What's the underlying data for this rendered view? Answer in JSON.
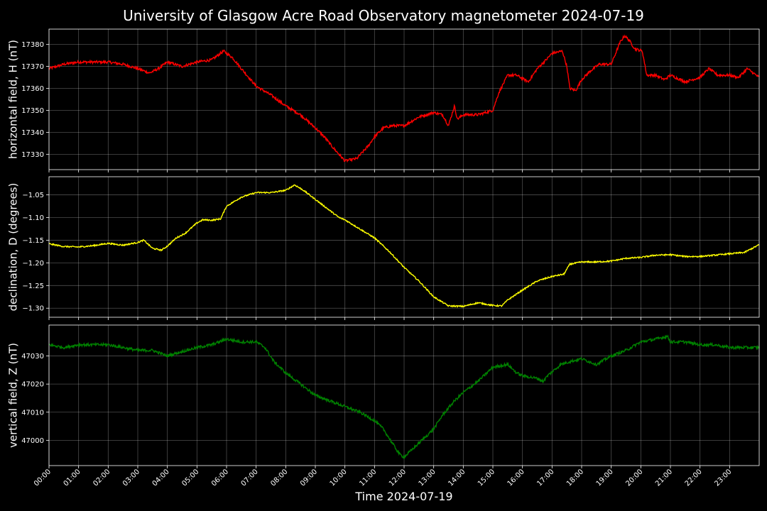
{
  "chart_data": {
    "type": "line",
    "title": "University of Glasgow Acre Road Observatory magnetometer 2024-07-19",
    "xlabel": "Time 2024-07-19",
    "x_ticks": [
      "00:00",
      "01:00",
      "02:00",
      "03:00",
      "04:00",
      "05:00",
      "06:00",
      "07:00",
      "08:00",
      "09:00",
      "10:00",
      "11:00",
      "12:00",
      "13:00",
      "14:00",
      "15:00",
      "16:00",
      "17:00",
      "18:00",
      "19:00",
      "20:00",
      "21:00",
      "22:00",
      "23:00"
    ],
    "xlim_hours": [
      0,
      24
    ],
    "grid": true,
    "panels": [
      {
        "ylabel": "horizontal field, H (nT)",
        "color": "#ff0000",
        "ylim": [
          17323,
          17387
        ],
        "y_ticks": [
          17330,
          17340,
          17350,
          17360,
          17370,
          17380
        ],
        "y_tick_labels": [
          "17330",
          "17340",
          "17350",
          "17360",
          "17370",
          "17380"
        ],
        "noise": 0.6,
        "points": [
          [
            0,
            17369
          ],
          [
            0.5,
            17371
          ],
          [
            1.0,
            17372
          ],
          [
            1.5,
            17372
          ],
          [
            2.0,
            17372
          ],
          [
            2.5,
            17371
          ],
          [
            3.0,
            17369
          ],
          [
            3.4,
            17367
          ],
          [
            3.7,
            17369
          ],
          [
            4.0,
            17372
          ],
          [
            4.5,
            17370
          ],
          [
            5.0,
            17372
          ],
          [
            5.5,
            17373
          ],
          [
            5.9,
            17377
          ],
          [
            6.2,
            17374
          ],
          [
            6.5,
            17369
          ],
          [
            7.0,
            17361
          ],
          [
            7.5,
            17357
          ],
          [
            8.0,
            17352
          ],
          [
            8.5,
            17348
          ],
          [
            9.0,
            17342
          ],
          [
            9.3,
            17338
          ],
          [
            9.6,
            17333
          ],
          [
            9.8,
            17330
          ],
          [
            10.0,
            17327
          ],
          [
            10.4,
            17328
          ],
          [
            10.8,
            17334
          ],
          [
            11.0,
            17338
          ],
          [
            11.3,
            17342
          ],
          [
            11.6,
            17343
          ],
          [
            12.0,
            17343
          ],
          [
            12.5,
            17347
          ],
          [
            13.0,
            17349
          ],
          [
            13.3,
            17348
          ],
          [
            13.5,
            17343
          ],
          [
            13.7,
            17352
          ],
          [
            13.8,
            17346
          ],
          [
            14.0,
            17348
          ],
          [
            14.5,
            17348
          ],
          [
            15.0,
            17350
          ],
          [
            15.2,
            17358
          ],
          [
            15.5,
            17366
          ],
          [
            15.8,
            17366
          ],
          [
            16.2,
            17363
          ],
          [
            16.5,
            17369
          ],
          [
            16.8,
            17373
          ],
          [
            17.0,
            17376
          ],
          [
            17.35,
            17377
          ],
          [
            17.5,
            17370
          ],
          [
            17.6,
            17360
          ],
          [
            17.8,
            17359
          ],
          [
            18.0,
            17364
          ],
          [
            18.3,
            17368
          ],
          [
            18.6,
            17371
          ],
          [
            19.0,
            17371
          ],
          [
            19.3,
            17381
          ],
          [
            19.45,
            17384
          ],
          [
            19.6,
            17382
          ],
          [
            19.8,
            17378
          ],
          [
            20.05,
            17377
          ],
          [
            20.2,
            17366
          ],
          [
            20.5,
            17366
          ],
          [
            20.8,
            17364
          ],
          [
            21.0,
            17366
          ],
          [
            21.5,
            17363
          ],
          [
            22.0,
            17365
          ],
          [
            22.3,
            17369
          ],
          [
            22.6,
            17366
          ],
          [
            23.0,
            17366
          ],
          [
            23.3,
            17365
          ],
          [
            23.6,
            17369
          ],
          [
            24,
            17365
          ]
        ]
      },
      {
        "ylabel": "declination, D (degrees)",
        "color": "#ffff00",
        "ylim": [
          -1.32,
          -1.01
        ],
        "y_ticks": [
          -1.3,
          -1.25,
          -1.2,
          -1.15,
          -1.1,
          -1.05
        ],
        "y_tick_labels": [
          "−1.30",
          "−1.25",
          "−1.20",
          "−1.15",
          "−1.10",
          "−1.05"
        ],
        "noise": 0.0015,
        "points": [
          [
            0,
            -1.158
          ],
          [
            0.5,
            -1.164
          ],
          [
            1.0,
            -1.165
          ],
          [
            1.5,
            -1.162
          ],
          [
            2.0,
            -1.157
          ],
          [
            2.5,
            -1.161
          ],
          [
            3.0,
            -1.155
          ],
          [
            3.2,
            -1.15
          ],
          [
            3.5,
            -1.168
          ],
          [
            3.8,
            -1.172
          ],
          [
            4.0,
            -1.163
          ],
          [
            4.3,
            -1.145
          ],
          [
            4.6,
            -1.135
          ],
          [
            5.0,
            -1.112
          ],
          [
            5.2,
            -1.105
          ],
          [
            5.5,
            -1.106
          ],
          [
            5.8,
            -1.103
          ],
          [
            6.0,
            -1.075
          ],
          [
            6.5,
            -1.055
          ],
          [
            7.0,
            -1.045
          ],
          [
            7.5,
            -1.045
          ],
          [
            8.0,
            -1.04
          ],
          [
            8.3,
            -1.028
          ],
          [
            8.6,
            -1.04
          ],
          [
            9.0,
            -1.06
          ],
          [
            9.3,
            -1.075
          ],
          [
            9.5,
            -1.085
          ],
          [
            9.8,
            -1.1
          ],
          [
            10.0,
            -1.105
          ],
          [
            10.5,
            -1.125
          ],
          [
            11.0,
            -1.145
          ],
          [
            11.5,
            -1.175
          ],
          [
            12.0,
            -1.21
          ],
          [
            12.5,
            -1.24
          ],
          [
            13.0,
            -1.275
          ],
          [
            13.5,
            -1.295
          ],
          [
            14.0,
            -1.296
          ],
          [
            14.5,
            -1.288
          ],
          [
            15.0,
            -1.294
          ],
          [
            15.3,
            -1.295
          ],
          [
            15.5,
            -1.282
          ],
          [
            16.0,
            -1.26
          ],
          [
            16.5,
            -1.24
          ],
          [
            17.0,
            -1.23
          ],
          [
            17.4,
            -1.225
          ],
          [
            17.6,
            -1.203
          ],
          [
            18.0,
            -1.198
          ],
          [
            18.5,
            -1.198
          ],
          [
            19.0,
            -1.196
          ],
          [
            19.5,
            -1.19
          ],
          [
            20.0,
            -1.188
          ],
          [
            20.5,
            -1.183
          ],
          [
            21.0,
            -1.182
          ],
          [
            21.5,
            -1.186
          ],
          [
            22.0,
            -1.186
          ],
          [
            22.5,
            -1.183
          ],
          [
            23.0,
            -1.18
          ],
          [
            23.5,
            -1.177
          ],
          [
            24,
            -1.16
          ]
        ]
      },
      {
        "ylabel": "vertical field, Z (nT)",
        "color": "#008000",
        "ylim": [
          46991,
          47041
        ],
        "y_ticks": [
          47000,
          47010,
          47020,
          47030
        ],
        "y_tick_labels": [
          "47000",
          "47010",
          "47020",
          "47030"
        ],
        "noise": 0.5,
        "points": [
          [
            0,
            47034
          ],
          [
            0.5,
            47033
          ],
          [
            1.0,
            47034
          ],
          [
            2.0,
            47034
          ],
          [
            2.5,
            47033
          ],
          [
            3.0,
            47032
          ],
          [
            3.5,
            47032
          ],
          [
            4.0,
            47030
          ],
          [
            4.3,
            47031
          ],
          [
            5.0,
            47033
          ],
          [
            5.5,
            47034
          ],
          [
            6.0,
            47036
          ],
          [
            6.5,
            47035
          ],
          [
            7.0,
            47035
          ],
          [
            7.3,
            47033
          ],
          [
            7.6,
            47028
          ],
          [
            8.0,
            47024
          ],
          [
            8.5,
            47020
          ],
          [
            9.0,
            47016
          ],
          [
            9.5,
            47014
          ],
          [
            10.0,
            47012
          ],
          [
            10.5,
            47010
          ],
          [
            11.0,
            47007
          ],
          [
            11.3,
            47004
          ],
          [
            11.6,
            46999
          ],
          [
            11.85,
            46995
          ],
          [
            12.0,
            46994
          ],
          [
            12.5,
            46999
          ],
          [
            13.0,
            47004
          ],
          [
            13.3,
            47009
          ],
          [
            13.7,
            47014
          ],
          [
            14.0,
            47017
          ],
          [
            14.5,
            47021
          ],
          [
            15.0,
            47026
          ],
          [
            15.5,
            47027
          ],
          [
            15.8,
            47024
          ],
          [
            16.0,
            47023
          ],
          [
            16.5,
            47022
          ],
          [
            16.7,
            47021
          ],
          [
            16.85,
            47023
          ],
          [
            17.3,
            47027
          ],
          [
            17.6,
            47028
          ],
          [
            18.0,
            47029
          ],
          [
            18.5,
            47027
          ],
          [
            19.0,
            47030
          ],
          [
            19.5,
            47032
          ],
          [
            20.0,
            47035
          ],
          [
            20.5,
            47036
          ],
          [
            20.9,
            47037
          ],
          [
            21.0,
            47035
          ],
          [
            21.5,
            47035
          ],
          [
            22.0,
            47034
          ],
          [
            22.5,
            47034
          ],
          [
            23.0,
            47033
          ],
          [
            23.5,
            47033
          ],
          [
            24,
            47033
          ]
        ]
      }
    ]
  }
}
